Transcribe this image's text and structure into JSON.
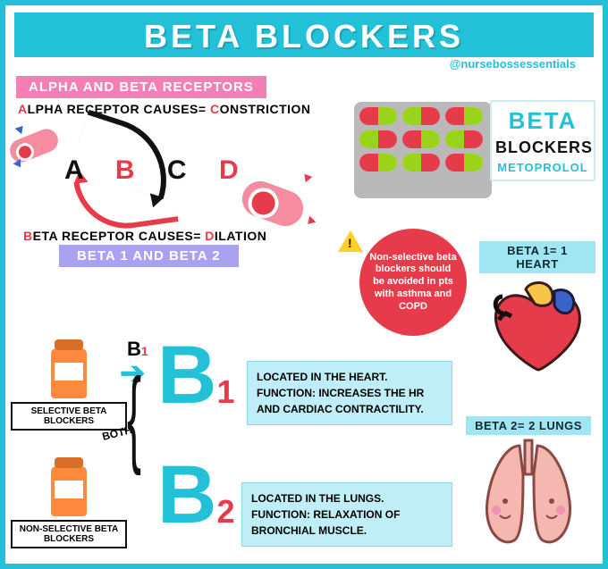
{
  "colors": {
    "border": "#23c1d8",
    "title_bg": "#23c1d8",
    "title_text": "#ffffff",
    "pink": "#f47fb7",
    "purple": "#a8a3f0",
    "red": "#e63b4a",
    "vessel": "#f58ca0",
    "pill_card": "#b9b9b9",
    "warn_yellow": "#ffd028",
    "info_bg": "#bfeef6",
    "badge_bg": "#9fe6f2",
    "bottle": "#ff8a3d",
    "heart_color": "#e63b4a",
    "heart_top": "#f7c648",
    "heart_vein": "#3a62c9",
    "lung_color": "#f5b8b0"
  },
  "title": "BETA BLOCKERS",
  "handle": "@nursebossessentials",
  "banners": {
    "alpha_beta": "ALPHA AND BETA RECEPTORS",
    "beta12": "BETA 1 AND BETA 2"
  },
  "lines": {
    "alpha": {
      "pre": "A",
      "mid": "LPHA RECEPTOR CAUSES= ",
      "hl": "C",
      "post": "ONSTRICTION"
    },
    "beta": {
      "pre": "B",
      "mid": "ETA RECEPTOR CAUSES= ",
      "hl": "D",
      "post": "ILATION"
    }
  },
  "abcd": {
    "a": "A",
    "b": "B",
    "c": "C",
    "d": "D"
  },
  "pill_pack": {
    "rows": 3,
    "cols": 3,
    "halves": [
      [
        "#e63b4a",
        "#9ad41a"
      ],
      [
        "#9ad41a",
        "#e63b4a"
      ],
      [
        "#e63b4a",
        "#9ad41a"
      ],
      [
        "#9ad41a",
        "#e63b4a"
      ],
      [
        "#e63b4a",
        "#9ad41a"
      ],
      [
        "#9ad41a",
        "#e63b4a"
      ],
      [
        "#e63b4a",
        "#9ad41a"
      ],
      [
        "#9ad41a",
        "#e63b4a"
      ],
      [
        "#e63b4a",
        "#9ad41a"
      ]
    ]
  },
  "side_card": {
    "line1": "BETA",
    "line2": "BLOCKERS",
    "line3": "METOPROLOL"
  },
  "warning": "Non-selective beta blockers should be avoided in pts with asthma and COPD",
  "badges": {
    "heart": "BETA 1= 1 HEART",
    "lungs": "BETA 2= 2 LUNGS"
  },
  "big_b": {
    "b": "B",
    "one": "1",
    "two": "2"
  },
  "flags": {
    "selective": "SELECTIVE BETA BLOCKERS",
    "nonselective": "NON-SELECTIVE BETA BLOCKERS",
    "both": "BOTH"
  },
  "info": {
    "b1": "LOCATED IN THE HEART. FUNCTION: INCREASES THE HR AND CARDIAC CONTRACTILITY.",
    "b2": "LOCATED IN THE LUNGS. FUNCTION: RELAXATION OF BRONCHIAL MUSCLE."
  },
  "bsmall": {
    "b": "B",
    "n": "1"
  }
}
